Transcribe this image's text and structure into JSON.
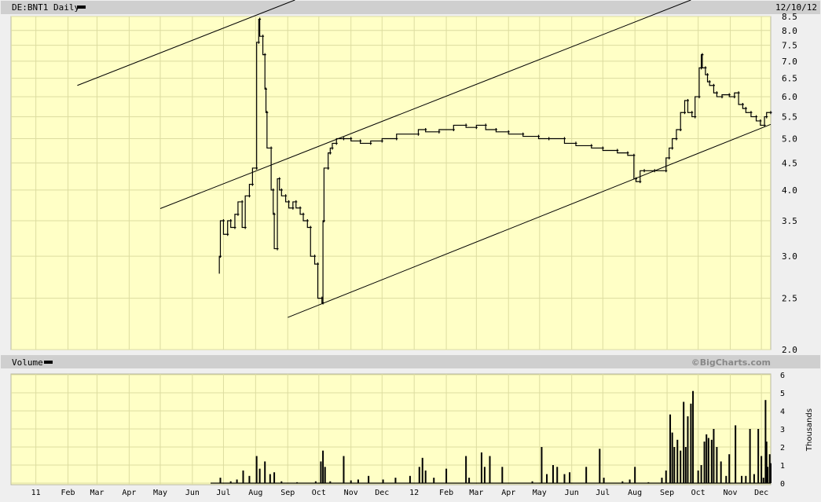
{
  "header": {
    "symbol_label": "DE:BNT1 Daily",
    "date": "12/10/12"
  },
  "volume_header": {
    "label": "Volume",
    "brand": "©BigCharts.com"
  },
  "chart_data": [
    {
      "type": "line",
      "title": "DE:BNT1 Daily",
      "scale": "log",
      "ylim": [
        2.0,
        8.5
      ],
      "xlim": [
        "2010-12-08",
        "2012-12-10"
      ],
      "grid": true,
      "y_ticks": [
        "8.5",
        "8.0",
        "7.5",
        "7.0",
        "6.5",
        "6.0",
        "5.5",
        "5.0",
        "4.5",
        "4.0",
        "3.5",
        "3.0",
        "2.5",
        "2.0"
      ],
      "series": [
        {
          "values": [
            [
              "2011-06-27",
              2.8
            ],
            [
              "2011-06-28",
              3.0
            ],
            [
              "2011-07-01",
              3.5
            ],
            [
              "2011-07-05",
              3.3
            ],
            [
              "2011-07-08",
              3.5
            ],
            [
              "2011-07-12",
              3.4
            ],
            [
              "2011-07-15",
              3.6
            ],
            [
              "2011-07-19",
              3.8
            ],
            [
              "2011-07-22",
              3.4
            ],
            [
              "2011-07-26",
              3.9
            ],
            [
              "2011-07-29",
              4.1
            ],
            [
              "2011-08-02",
              4.4
            ],
            [
              "2011-08-04",
              7.6
            ],
            [
              "2011-08-05",
              8.4
            ],
            [
              "2011-08-08",
              7.8
            ],
            [
              "2011-08-10",
              7.2
            ],
            [
              "2011-08-11",
              6.2
            ],
            [
              "2011-08-12",
              5.6
            ],
            [
              "2011-08-16",
              4.8
            ],
            [
              "2011-08-18",
              4.0
            ],
            [
              "2011-08-19",
              3.6
            ],
            [
              "2011-08-22",
              3.1
            ],
            [
              "2011-08-24",
              4.2
            ],
            [
              "2011-08-26",
              4.0
            ],
            [
              "2011-08-30",
              3.9
            ],
            [
              "2011-09-02",
              3.8
            ],
            [
              "2011-09-06",
              3.7
            ],
            [
              "2011-09-09",
              3.8
            ],
            [
              "2011-09-13",
              3.7
            ],
            [
              "2011-09-16",
              3.6
            ],
            [
              "2011-09-20",
              3.5
            ],
            [
              "2011-09-23",
              3.4
            ],
            [
              "2011-09-27",
              3.0
            ],
            [
              "2011-09-30",
              2.9
            ],
            [
              "2011-10-04",
              2.5
            ],
            [
              "2011-10-05",
              2.45
            ],
            [
              "2011-10-06",
              3.5
            ],
            [
              "2011-10-10",
              4.4
            ],
            [
              "2011-10-12",
              4.7
            ],
            [
              "2011-10-14",
              4.8
            ],
            [
              "2011-10-18",
              4.9
            ],
            [
              "2011-10-25",
              5.0
            ],
            [
              "2011-11-01",
              5.0
            ],
            [
              "2011-11-10",
              4.95
            ],
            [
              "2011-11-20",
              4.9
            ],
            [
              "2011-12-01",
              4.95
            ],
            [
              "2011-12-15",
              5.0
            ],
            [
              "2012-01-05",
              5.1
            ],
            [
              "2012-01-12",
              5.2
            ],
            [
              "2012-01-25",
              5.15
            ],
            [
              "2012-02-08",
              5.2
            ],
            [
              "2012-02-20",
              5.3
            ],
            [
              "2012-03-01",
              5.25
            ],
            [
              "2012-03-10",
              5.3
            ],
            [
              "2012-03-20",
              5.2
            ],
            [
              "2012-04-01",
              5.15
            ],
            [
              "2012-04-15",
              5.1
            ],
            [
              "2012-04-30",
              5.05
            ],
            [
              "2012-05-10",
              5.0
            ],
            [
              "2012-05-25",
              5.0
            ],
            [
              "2012-06-05",
              4.9
            ],
            [
              "2012-06-20",
              4.85
            ],
            [
              "2012-07-01",
              4.8
            ],
            [
              "2012-07-15",
              4.75
            ],
            [
              "2012-07-25",
              4.7
            ],
            [
              "2012-07-31",
              4.65
            ],
            [
              "2012-08-02",
              4.2
            ],
            [
              "2012-08-06",
              4.15
            ],
            [
              "2012-08-10",
              4.35
            ],
            [
              "2012-08-20",
              4.35
            ],
            [
              "2012-08-31",
              4.35
            ],
            [
              "2012-09-03",
              4.6
            ],
            [
              "2012-09-06",
              4.8
            ],
            [
              "2012-09-10",
              5.0
            ],
            [
              "2012-09-14",
              5.2
            ],
            [
              "2012-09-18",
              5.6
            ],
            [
              "2012-09-21",
              5.9
            ],
            [
              "2012-09-25",
              5.6
            ],
            [
              "2012-09-28",
              5.5
            ],
            [
              "2012-10-02",
              6.0
            ],
            [
              "2012-10-04",
              6.8
            ],
            [
              "2012-10-05",
              7.2
            ],
            [
              "2012-10-08",
              6.8
            ],
            [
              "2012-10-10",
              6.6
            ],
            [
              "2012-10-12",
              6.4
            ],
            [
              "2012-10-16",
              6.3
            ],
            [
              "2012-10-19",
              6.1
            ],
            [
              "2012-10-24",
              6.0
            ],
            [
              "2012-10-31",
              6.05
            ],
            [
              "2012-11-05",
              6.0
            ],
            [
              "2012-11-09",
              6.1
            ],
            [
              "2012-11-13",
              5.8
            ],
            [
              "2012-11-16",
              5.7
            ],
            [
              "2012-11-21",
              5.6
            ],
            [
              "2012-11-26",
              5.5
            ],
            [
              "2012-11-30",
              5.4
            ],
            [
              "2012-12-04",
              5.3
            ],
            [
              "2012-12-06",
              5.5
            ],
            [
              "2012-12-10",
              5.6
            ]
          ]
        }
      ],
      "trendlines": [
        {
          "start": [
            "2011-02-10",
            6.3
          ],
          "end": [
            "2011-09-14",
            9.23
          ]
        },
        {
          "start": [
            "2011-05-01",
            3.69
          ],
          "end": [
            "2012-09-30",
            9.23
          ]
        },
        {
          "start": [
            "2011-09-01",
            2.3
          ],
          "end": [
            "2012-12-10",
            5.32
          ]
        }
      ]
    },
    {
      "type": "bar",
      "title": "Volume",
      "ylabel": "Thousands",
      "ylim": [
        0,
        6
      ],
      "grid": true,
      "y_ticks": [
        "6",
        "5",
        "4",
        "3",
        "2",
        "1",
        "0"
      ],
      "series": [
        {
          "values": [
            [
              "2011-06-28",
              0.3
            ],
            [
              "2011-07-08",
              0.1
            ],
            [
              "2011-07-14",
              0.2
            ],
            [
              "2011-07-20",
              0.7
            ],
            [
              "2011-07-26",
              0.4
            ],
            [
              "2011-08-02",
              1.5
            ],
            [
              "2011-08-05",
              0.8
            ],
            [
              "2011-08-10",
              1.2
            ],
            [
              "2011-08-15",
              0.5
            ],
            [
              "2011-08-19",
              0.6
            ],
            [
              "2011-08-26",
              0.1
            ],
            [
              "2011-09-10",
              0.05
            ],
            [
              "2011-09-28",
              0.1
            ],
            [
              "2011-10-03",
              1.2
            ],
            [
              "2011-10-05",
              1.8
            ],
            [
              "2011-10-07",
              0.9
            ],
            [
              "2011-10-12",
              0.1
            ],
            [
              "2011-10-25",
              1.5
            ],
            [
              "2011-11-01",
              0.15
            ],
            [
              "2011-11-08",
              0.2
            ],
            [
              "2011-11-18",
              0.4
            ],
            [
              "2011-12-02",
              0.2
            ],
            [
              "2011-12-14",
              0.3
            ],
            [
              "2011-12-28",
              0.4
            ],
            [
              "2012-01-06",
              0.9
            ],
            [
              "2012-01-09",
              1.4
            ],
            [
              "2012-01-12",
              0.7
            ],
            [
              "2012-01-20",
              0.3
            ],
            [
              "2012-02-01",
              0.8
            ],
            [
              "2012-02-20",
              1.5
            ],
            [
              "2012-02-23",
              0.3
            ],
            [
              "2012-03-06",
              1.7
            ],
            [
              "2012-03-09",
              0.9
            ],
            [
              "2012-03-14",
              1.5
            ],
            [
              "2012-03-26",
              0.9
            ],
            [
              "2012-04-24",
              0.1
            ],
            [
              "2012-05-03",
              2.0
            ],
            [
              "2012-05-08",
              0.5
            ],
            [
              "2012-05-14",
              1.0
            ],
            [
              "2012-05-18",
              0.9
            ],
            [
              "2012-05-25",
              0.5
            ],
            [
              "2012-05-30",
              0.6
            ],
            [
              "2012-06-15",
              0.9
            ],
            [
              "2012-06-28",
              1.9
            ],
            [
              "2012-07-02",
              0.3
            ],
            [
              "2012-07-20",
              0.1
            ],
            [
              "2012-07-27",
              0.2
            ],
            [
              "2012-08-01",
              0.9
            ],
            [
              "2012-08-14",
              0.05
            ],
            [
              "2012-08-27",
              0.3
            ],
            [
              "2012-08-31",
              0.7
            ],
            [
              "2012-09-04",
              3.8
            ],
            [
              "2012-09-06",
              2.8
            ],
            [
              "2012-09-08",
              2.0
            ],
            [
              "2012-09-11",
              2.4
            ],
            [
              "2012-09-14",
              1.8
            ],
            [
              "2012-09-17",
              4.5
            ],
            [
              "2012-09-19",
              2.0
            ],
            [
              "2012-09-21",
              3.7
            ],
            [
              "2012-09-24",
              4.4
            ],
            [
              "2012-09-26",
              5.1
            ],
            [
              "2012-10-01",
              0.7
            ],
            [
              "2012-10-04",
              1.0
            ],
            [
              "2012-10-07",
              2.3
            ],
            [
              "2012-10-09",
              2.7
            ],
            [
              "2012-10-11",
              2.5
            ],
            [
              "2012-10-14",
              2.4
            ],
            [
              "2012-10-16",
              3.0
            ],
            [
              "2012-10-19",
              2.0
            ],
            [
              "2012-10-23",
              1.2
            ],
            [
              "2012-10-28",
              0.4
            ],
            [
              "2012-10-31",
              1.6
            ],
            [
              "2012-11-06",
              3.2
            ],
            [
              "2012-11-12",
              0.4
            ],
            [
              "2012-11-16",
              0.4
            ],
            [
              "2012-11-20",
              3.0
            ],
            [
              "2012-11-24",
              0.5
            ],
            [
              "2012-11-28",
              3.0
            ],
            [
              "2012-12-01",
              1.5
            ],
            [
              "2012-12-03",
              0.3
            ],
            [
              "2012-12-05",
              4.6
            ],
            [
              "2012-12-06",
              2.3
            ],
            [
              "2012-12-07",
              0.9
            ],
            [
              "2012-12-09",
              1.6
            ],
            [
              "2012-12-10",
              1.1
            ]
          ]
        }
      ]
    }
  ],
  "x_ticks": [
    [
      "11",
      "2011-01-01"
    ],
    [
      "Feb",
      "2011-02-01"
    ],
    [
      "Mar",
      "2011-03-01"
    ],
    [
      "Apr",
      "2011-04-01"
    ],
    [
      "May",
      "2011-05-01"
    ],
    [
      "Jun",
      "2011-06-01"
    ],
    [
      "Jul",
      "2011-07-01"
    ],
    [
      "Aug",
      "2011-08-01"
    ],
    [
      "Sep",
      "2011-09-01"
    ],
    [
      "Oct",
      "2011-10-01"
    ],
    [
      "Nov",
      "2011-11-01"
    ],
    [
      "Dec",
      "2011-12-01"
    ],
    [
      "12",
      "2012-01-01"
    ],
    [
      "Feb",
      "2012-02-01"
    ],
    [
      "Mar",
      "2012-03-01"
    ],
    [
      "Apr",
      "2012-04-01"
    ],
    [
      "May",
      "2012-05-01"
    ],
    [
      "Jun",
      "2012-06-01"
    ],
    [
      "Jul",
      "2012-07-01"
    ],
    [
      "Aug",
      "2012-08-01"
    ],
    [
      "Sep",
      "2012-09-01"
    ],
    [
      "Oct",
      "2012-10-01"
    ],
    [
      "Nov",
      "2012-11-01"
    ],
    [
      "Dec",
      "2012-12-01"
    ]
  ]
}
